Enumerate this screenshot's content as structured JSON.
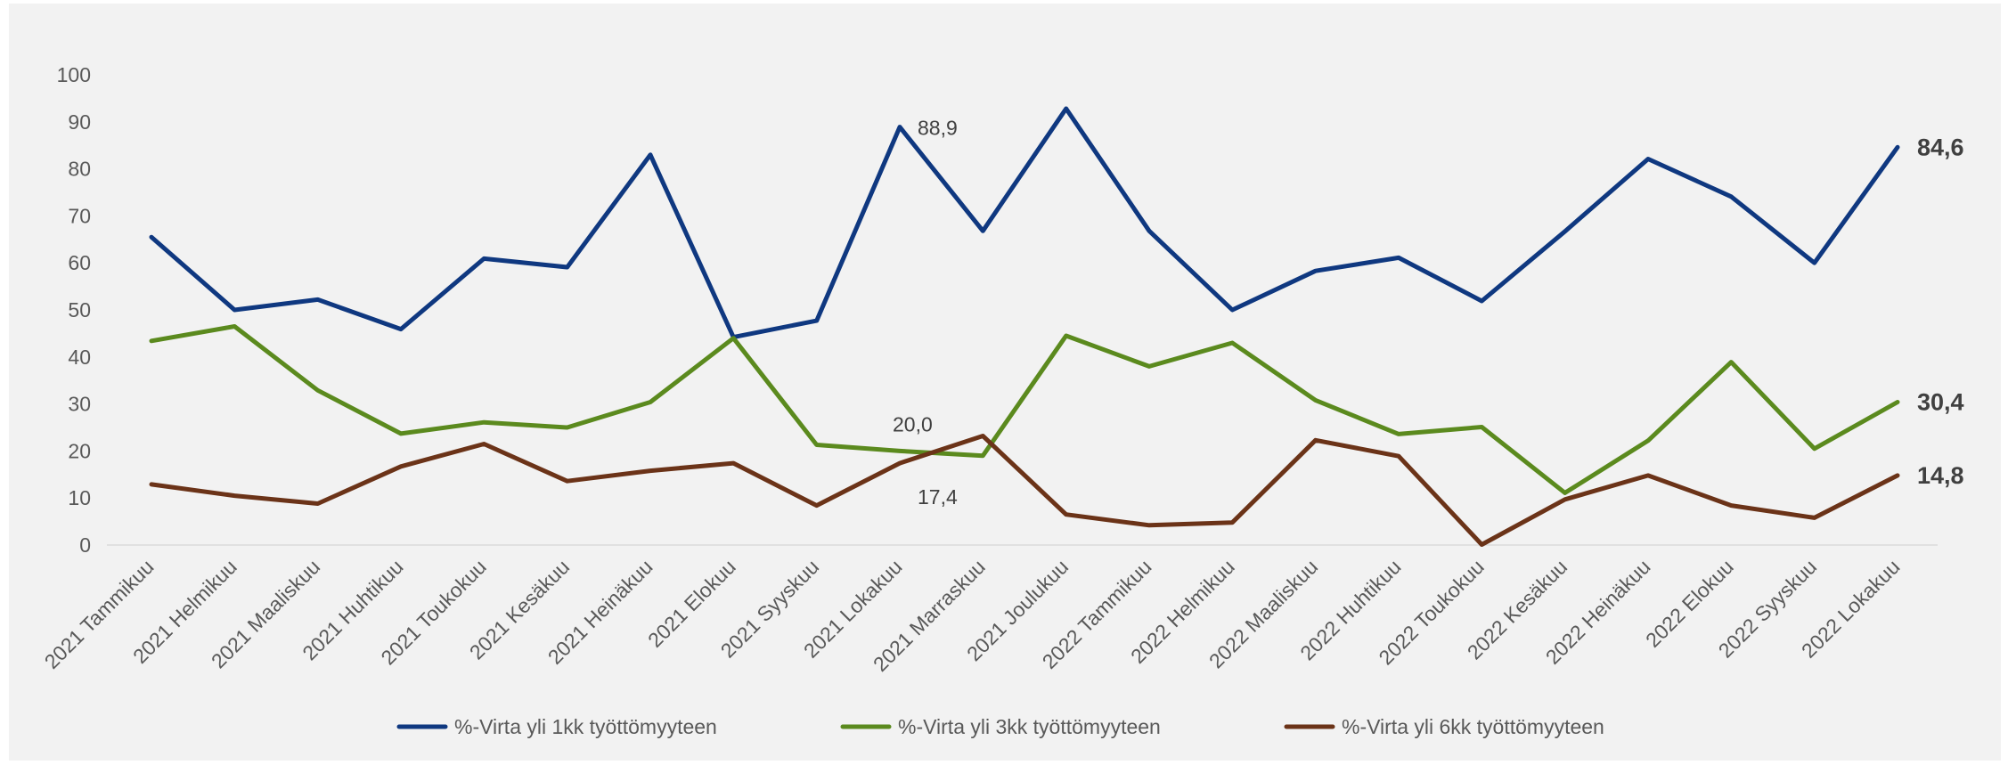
{
  "chart_data": {
    "type": "line",
    "title": "",
    "xlabel": "",
    "ylabel": "",
    "ylim": [
      0,
      100
    ],
    "yticks": [
      0,
      10,
      20,
      30,
      40,
      50,
      60,
      70,
      80,
      90,
      100
    ],
    "grid": false,
    "legend_position": "bottom",
    "categories": [
      "2021 Tammikuu",
      "2021 Helmikuu",
      "2021 Maaliskuu",
      "2021 Huhtikuu",
      "2021 Toukokuu",
      "2021 Kesäkuu",
      "2021 Heinäkuu",
      "2021 Elokuu",
      "2021 Syyskuu",
      "2021 Lokakuu",
      "2021 Marraskuu",
      "2021 Joulukuu",
      "2022 Tammikuu",
      "2022 Helmikuu",
      "2022 Maaliskuu",
      "2022 Huhtikuu",
      "2022 Toukokuu",
      "2022 Kesäkuu",
      "2022 Heinäkuu",
      "2022 Elokuu",
      "2022 Syyskuu",
      "2022 Lokakuu"
    ],
    "series": [
      {
        "name": "%-Virta yli 1kk työttömyyteen",
        "color": "#0f3880",
        "values": [
          65.5,
          50.0,
          52.2,
          45.9,
          60.9,
          59.1,
          83.0,
          44.2,
          47.7,
          88.9,
          66.8,
          92.8,
          66.8,
          50.0,
          58.3,
          61.1,
          51.9,
          66.7,
          82.1,
          74.1,
          60.0,
          84.6
        ]
      },
      {
        "name": "%-Virta yli 3kk työttömyyteen",
        "color": "#5b8a1e",
        "values": [
          43.4,
          46.5,
          32.9,
          23.7,
          26.1,
          25.0,
          30.4,
          44.0,
          21.3,
          20.0,
          19.0,
          44.5,
          38.0,
          43.0,
          30.8,
          23.6,
          25.1,
          11.1,
          22.2,
          38.9,
          20.5,
          30.4
        ]
      },
      {
        "name": "%-Virta yli 6kk työttömyyteen",
        "color": "#6b3318",
        "values": [
          12.9,
          10.5,
          8.8,
          16.7,
          21.5,
          13.6,
          15.8,
          17.4,
          8.4,
          17.4,
          23.2,
          6.5,
          4.2,
          4.8,
          22.3,
          18.9,
          0.1,
          9.7,
          14.8,
          8.4,
          5.8,
          14.8
        ]
      }
    ],
    "data_labels": [
      {
        "series": 0,
        "index": 9,
        "text": "88,9",
        "anchor": "start",
        "dx": 20,
        "dy": 9
      },
      {
        "series": 1,
        "index": 9,
        "text": "20,0",
        "anchor": "start",
        "dx": -8,
        "dy": -22
      },
      {
        "series": 2,
        "index": 9,
        "text": "17,4",
        "anchor": "start",
        "dx": 20,
        "dy": 46
      }
    ],
    "end_labels": [
      {
        "series": 0,
        "text": "84,6"
      },
      {
        "series": 1,
        "text": "30,4"
      },
      {
        "series": 2,
        "text": "14,8"
      }
    ]
  }
}
